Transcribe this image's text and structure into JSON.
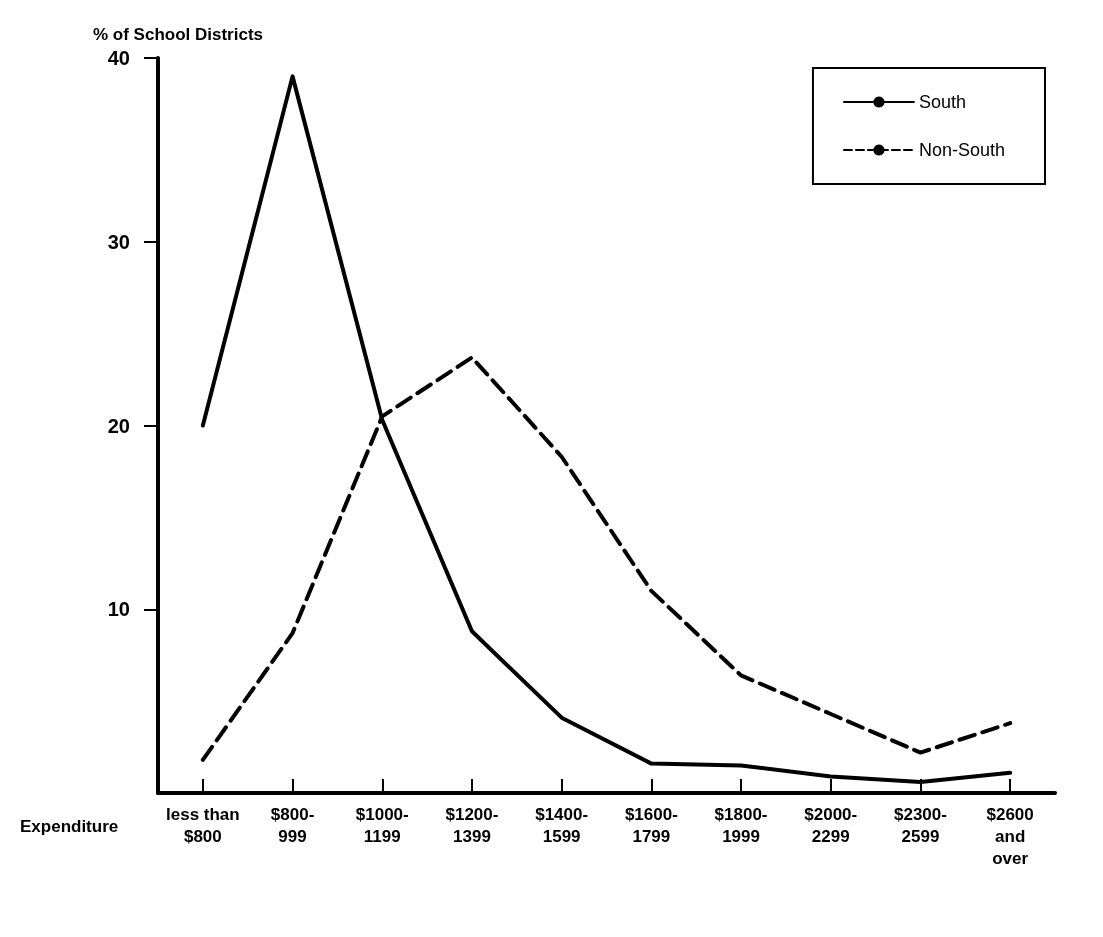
{
  "chart_data": {
    "type": "line",
    "ylabel": "% of School Districts",
    "xlabel": "Expenditure",
    "categories": [
      "less than\n$800",
      "$800-\n999",
      "$1000-\n1199",
      "$1200-\n1399",
      "$1400-\n1599",
      "$1600-\n1799",
      "$1800-\n1999",
      "$2000-\n2299",
      "$2300-\n2599",
      "$2600\nand\nover"
    ],
    "series": [
      {
        "name": "South",
        "color": "#000000",
        "line_style": "solid",
        "values": [
          20,
          39,
          20.3,
          8.8,
          4.1,
          1.6,
          1.5,
          0.9,
          0.6,
          1.1
        ]
      },
      {
        "name": "Non-South",
        "color": "#000000",
        "line_style": "dashed",
        "values": [
          1.8,
          8.7,
          20.5,
          23.7,
          18.3,
          11,
          6.4,
          4.3,
          2.2,
          3.8
        ]
      }
    ],
    "ylim": [
      0,
      40
    ],
    "yticks": [
      10,
      20,
      30,
      40
    ],
    "grid": false,
    "legend": "top right",
    "marker": "none"
  }
}
